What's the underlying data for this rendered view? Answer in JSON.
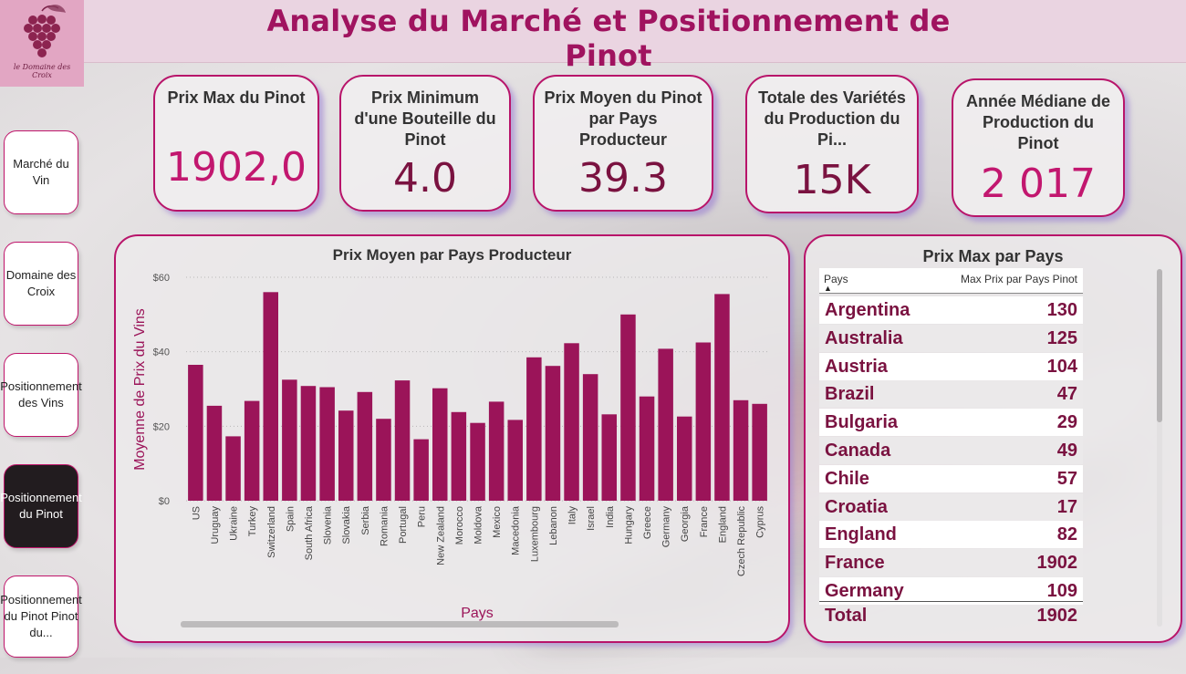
{
  "header": {
    "title": "Analyse du Marché et Positionnement de Pinot",
    "logo_text": "le Domaine des Croix"
  },
  "nav": [
    {
      "label": "Marché du Vin",
      "active": false
    },
    {
      "label": "Domaine des Croix",
      "active": false
    },
    {
      "label": "Positionnement des Vins",
      "active": false
    },
    {
      "label": "Positionnement du Pinot",
      "active": true
    },
    {
      "label": "Positionnement du Pinot Pinot du...",
      "active": false
    }
  ],
  "kpis": [
    {
      "label": "Prix Max du Pinot",
      "value": "1902,0"
    },
    {
      "label": "Prix Minimum d'une Bouteille du Pinot",
      "value": "4.0"
    },
    {
      "label": "Prix Moyen du Pinot par Pays Producteur",
      "value": "39.3"
    },
    {
      "label": "Totale des Variétés du Production du Pi...",
      "value": "15K"
    },
    {
      "label": "Année Médiane de Production du Pinot",
      "value": "2 017"
    }
  ],
  "chart_data": {
    "type": "bar",
    "title": "Prix Moyen par Pays Producteur",
    "xlabel": "Pays",
    "ylabel": "Moyenne de Prix du Vins",
    "yticks": [
      "$0",
      "$20",
      "$40",
      "$60"
    ],
    "ylim": [
      0,
      60
    ],
    "categories": [
      "US",
      "Uruguay",
      "Ukraine",
      "Turkey",
      "Switzerland",
      "Spain",
      "South Africa",
      "Slovenia",
      "Slovakia",
      "Serbia",
      "Romania",
      "Portugal",
      "Peru",
      "New Zealand",
      "Morocco",
      "Moldova",
      "Mexico",
      "Macedonia",
      "Luxembourg",
      "Lebanon",
      "Italy",
      "Israel",
      "India",
      "Hungary",
      "Greece",
      "Germany",
      "Georgia",
      "France",
      "England",
      "Czech Republic",
      "Cyprus"
    ],
    "values": [
      36.5,
      25.5,
      17.3,
      26.8,
      56,
      32.5,
      30.8,
      30.5,
      24.2,
      29.2,
      22,
      32.3,
      16.5,
      30.2,
      23.8,
      20.9,
      26.6,
      21.7,
      38.5,
      36.2,
      42.3,
      34,
      23.2,
      50,
      28,
      40.8,
      22.6,
      42.5,
      55.5,
      27,
      26
    ],
    "bar_color": "#9b1459",
    "grid": true
  },
  "table": {
    "title": "Prix Max par Pays",
    "col1": "Pays",
    "col2": "Max Prix par Pays Pinot",
    "rows": [
      {
        "country": "Argentina",
        "value": "130"
      },
      {
        "country": "Australia",
        "value": "125"
      },
      {
        "country": "Austria",
        "value": "104"
      },
      {
        "country": "Brazil",
        "value": "47"
      },
      {
        "country": "Bulgaria",
        "value": "29"
      },
      {
        "country": "Canada",
        "value": "49"
      },
      {
        "country": "Chile",
        "value": "57"
      },
      {
        "country": "Croatia",
        "value": "17"
      },
      {
        "country": "England",
        "value": "82"
      },
      {
        "country": "France",
        "value": "1902"
      },
      {
        "country": "Germany",
        "value": "109"
      }
    ],
    "total_label": "Total",
    "total_value": "1902"
  }
}
